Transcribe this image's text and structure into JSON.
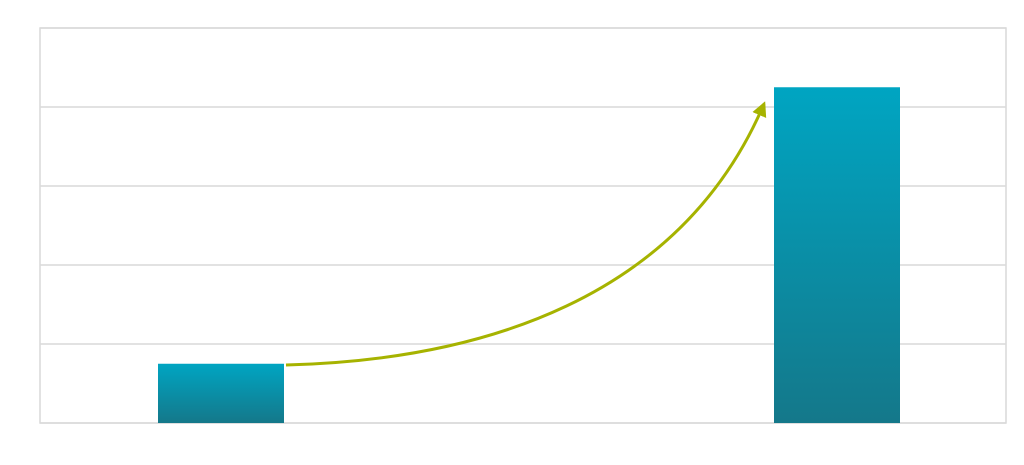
{
  "chart_data": {
    "type": "bar",
    "categories": [
      null,
      null
    ],
    "values": [
      0.75,
      4.25
    ],
    "color": "#0a93ad",
    "ylim": [
      0,
      5
    ],
    "yticks": [
      0,
      1,
      2,
      3,
      4,
      5
    ],
    "grid": true
  }
}
